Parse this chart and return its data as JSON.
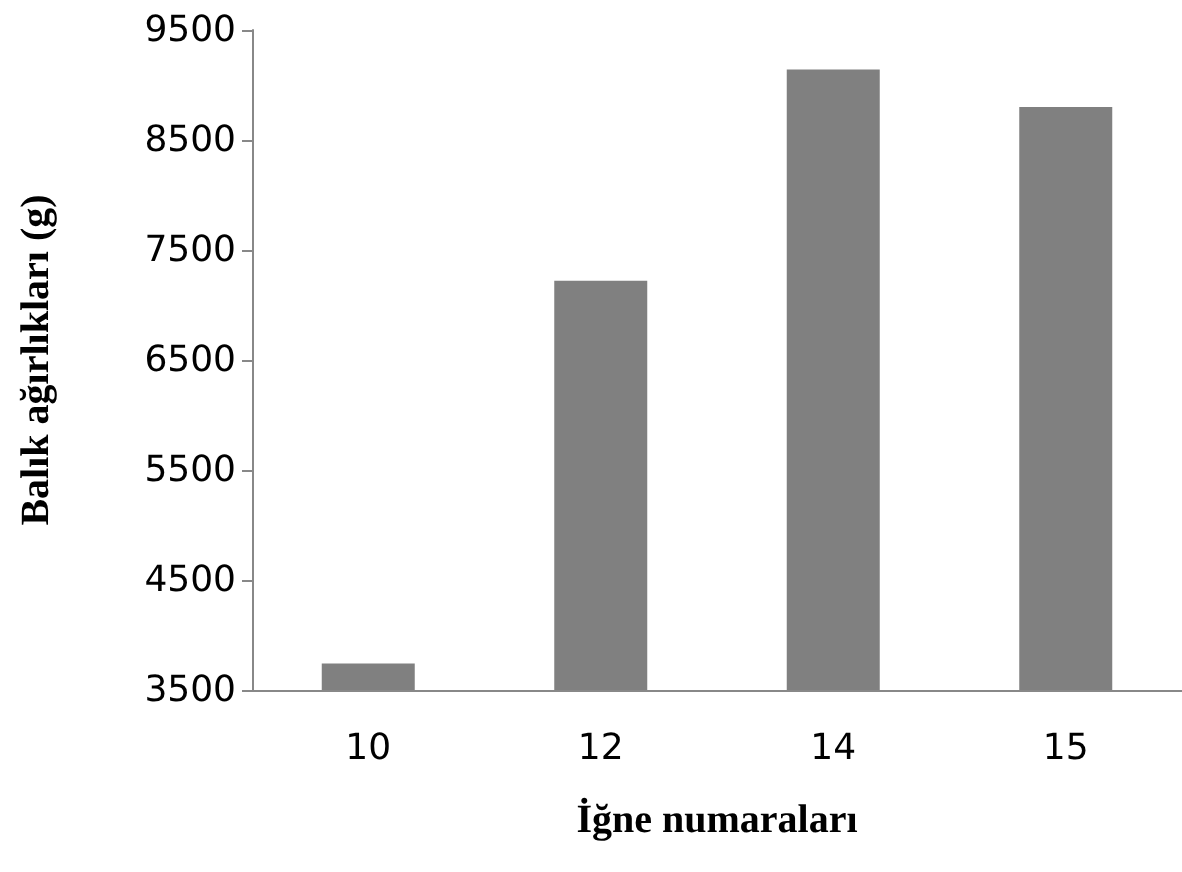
{
  "chart_data": {
    "type": "bar",
    "xlabel": "İğne numaraları",
    "ylabel": "Balık ağırlıkları (g)",
    "categories": [
      "10",
      "12",
      "14",
      "15"
    ],
    "values": [
      3740,
      7220,
      9140,
      8800
    ],
    "color": "#808080",
    "ylim": [
      3500,
      9500
    ],
    "yticks": [
      3500,
      4500,
      5500,
      6500,
      7500,
      8500,
      9500
    ],
    "grid": false
  }
}
